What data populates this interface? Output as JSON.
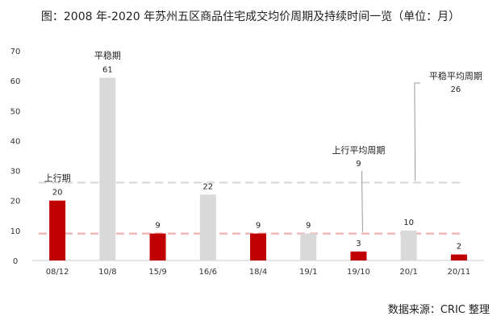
{
  "title": "图：2008 年-2020 年苏州五区商品住宅成交均价周期及持续时间一览（单位：月）",
  "source": "数据来源：CRIC 整理",
  "colors": {
    "up": "#c00000",
    "flat": "#d9d9d9",
    "axis": "#cccccc",
    "refline": "#f0b8b8",
    "refline_gray": "#dddddd"
  },
  "chart_data": {
    "type": "bar",
    "categories": [
      "08/12",
      "10/8",
      "15/9",
      "16/6",
      "18/4",
      "19/1",
      "19/10",
      "20/1",
      "20/11"
    ],
    "values": [
      20,
      61,
      9,
      22,
      9,
      9,
      3,
      10,
      2
    ],
    "phase": [
      "上行",
      "平稳",
      "上行",
      "平稳",
      "上行",
      "平稳",
      "上行",
      "平稳",
      "上行"
    ],
    "ylim": [
      0,
      70
    ],
    "yticks": [
      0,
      10,
      20,
      30,
      40,
      50,
      60,
      70
    ],
    "reference_lines": [
      {
        "label": "上行平均周期",
        "value": 9
      },
      {
        "label": "平稳平均周期",
        "value": 26
      }
    ],
    "annotations": {
      "first_up": "上行期",
      "first_flat": "平稳期",
      "avg_up_label": "上行平均周期",
      "avg_up_value": "9",
      "avg_flat_label": "平稳平均周期",
      "avg_flat_value": "26"
    },
    "grid": false,
    "legend": "none"
  }
}
